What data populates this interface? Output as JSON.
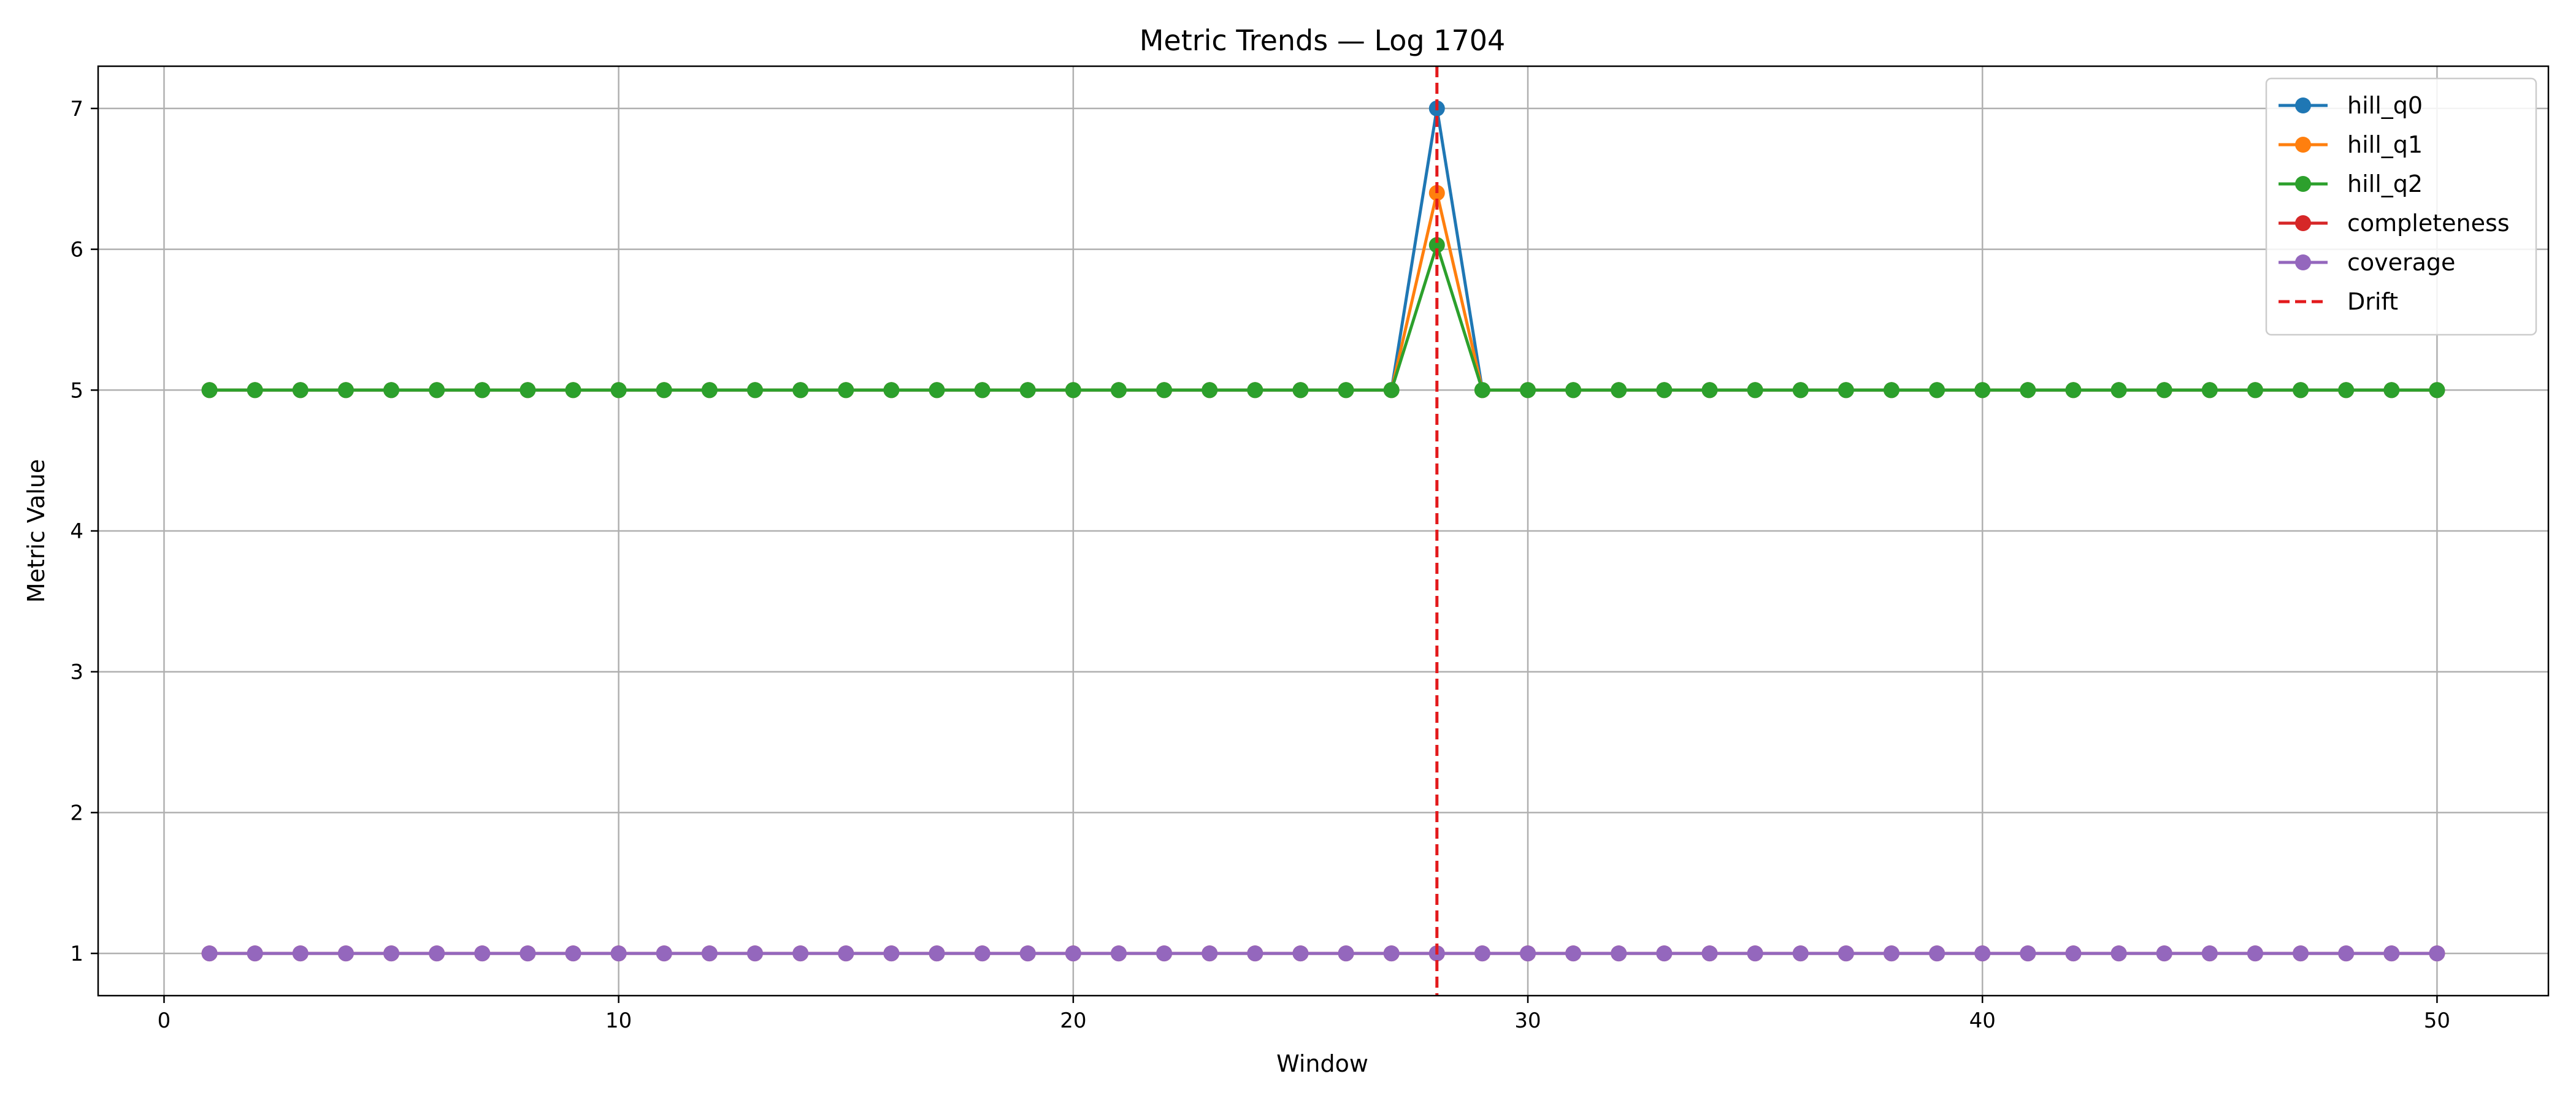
{
  "chart_data": {
    "type": "line",
    "title": "Metric Trends — Log 1704",
    "xlabel": "Window",
    "ylabel": "Metric Value",
    "xlim": [
      -1.45,
      52.45
    ],
    "ylim": [
      0.7,
      7.3
    ],
    "xticks": [
      0,
      10,
      20,
      30,
      40,
      50
    ],
    "yticks": [
      1,
      2,
      3,
      4,
      5,
      6,
      7
    ],
    "grid": true,
    "legend_position": "top-right",
    "drift_marker": {
      "label": "Drift",
      "x": 28,
      "color": "#e31a1c"
    },
    "series": [
      {
        "name": "hill_q0",
        "color": "#1f77b4",
        "base": 5,
        "spike_x": 28,
        "spike_value": 7.0
      },
      {
        "name": "hill_q1",
        "color": "#ff7f0e",
        "base": 5,
        "spike_x": 28,
        "spike_value": 6.4
      },
      {
        "name": "hill_q2",
        "color": "#2ca02c",
        "base": 5,
        "spike_x": 28,
        "spike_value": 6.03
      },
      {
        "name": "completeness",
        "color": "#d62728",
        "base": 1,
        "spike_x": 28,
        "spike_value": 1
      },
      {
        "name": "coverage",
        "color": "#9467bd",
        "base": 1,
        "spike_x": 28,
        "spike_value": 1
      }
    ],
    "x_start": 1,
    "x_end": 50
  }
}
